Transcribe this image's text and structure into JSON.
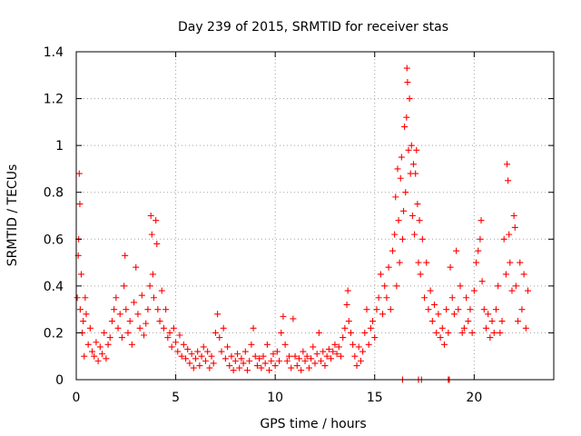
{
  "chart_data": {
    "type": "scatter",
    "title": "Day 239 of 2015, SRMTID for receiver stas",
    "xlabel": "GPS time / hours",
    "ylabel": "SRMTID / TECUs",
    "xlim": [
      0,
      24
    ],
    "ylim": [
      0,
      1.4
    ],
    "xticks": [
      0,
      5,
      10,
      15,
      20
    ],
    "xtick_labels": [
      "0",
      "5",
      "10",
      "15",
      "20"
    ],
    "yticks": [
      0,
      0.2,
      0.4,
      0.6,
      0.8,
      1.0,
      1.2,
      1.4
    ],
    "ytick_labels": [
      "0",
      "0.2",
      "0.4",
      "0.6",
      "0.8",
      "1",
      "1.2",
      "1.4"
    ],
    "grid": true,
    "marker": "+",
    "color": "#ff0000",
    "series": [
      {
        "name": "SRMTID",
        "points": [
          [
            0.05,
            0.35
          ],
          [
            0.1,
            0.53
          ],
          [
            0.12,
            0.6
          ],
          [
            0.15,
            0.88
          ],
          [
            0.18,
            0.75
          ],
          [
            0.2,
            0.3
          ],
          [
            0.25,
            0.45
          ],
          [
            0.3,
            0.2
          ],
          [
            0.35,
            0.25
          ],
          [
            0.4,
            0.1
          ],
          [
            0.45,
            0.35
          ],
          [
            0.5,
            0.28
          ],
          [
            0.6,
            0.15
          ],
          [
            0.7,
            0.22
          ],
          [
            0.8,
            0.12
          ],
          [
            0.9,
            0.1
          ],
          [
            1.0,
            0.16
          ],
          [
            1.1,
            0.08
          ],
          [
            1.2,
            0.14
          ],
          [
            1.3,
            0.11
          ],
          [
            1.4,
            0.2
          ],
          [
            1.5,
            0.09
          ],
          [
            1.6,
            0.15
          ],
          [
            1.7,
            0.18
          ],
          [
            1.8,
            0.25
          ],
          [
            1.9,
            0.3
          ],
          [
            2.0,
            0.35
          ],
          [
            2.1,
            0.22
          ],
          [
            2.2,
            0.28
          ],
          [
            2.3,
            0.18
          ],
          [
            2.4,
            0.4
          ],
          [
            2.45,
            0.53
          ],
          [
            2.5,
            0.3
          ],
          [
            2.6,
            0.2
          ],
          [
            2.7,
            0.25
          ],
          [
            2.8,
            0.15
          ],
          [
            2.9,
            0.33
          ],
          [
            3.0,
            0.48
          ],
          [
            3.1,
            0.28
          ],
          [
            3.2,
            0.22
          ],
          [
            3.3,
            0.36
          ],
          [
            3.4,
            0.19
          ],
          [
            3.5,
            0.24
          ],
          [
            3.6,
            0.3
          ],
          [
            3.7,
            0.4
          ],
          [
            3.75,
            0.7
          ],
          [
            3.8,
            0.62
          ],
          [
            3.85,
            0.45
          ],
          [
            3.9,
            0.35
          ],
          [
            4.0,
            0.68
          ],
          [
            4.05,
            0.58
          ],
          [
            4.1,
            0.3
          ],
          [
            4.2,
            0.25
          ],
          [
            4.3,
            0.38
          ],
          [
            4.4,
            0.22
          ],
          [
            4.5,
            0.3
          ],
          [
            4.6,
            0.18
          ],
          [
            4.7,
            0.2
          ],
          [
            4.8,
            0.14
          ],
          [
            4.9,
            0.22
          ],
          [
            5.0,
            0.16
          ],
          [
            5.1,
            0.12
          ],
          [
            5.2,
            0.19
          ],
          [
            5.3,
            0.1
          ],
          [
            5.4,
            0.15
          ],
          [
            5.5,
            0.09
          ],
          [
            5.6,
            0.13
          ],
          [
            5.7,
            0.07
          ],
          [
            5.8,
            0.11
          ],
          [
            5.9,
            0.05
          ],
          [
            6.0,
            0.09
          ],
          [
            6.1,
            0.12
          ],
          [
            6.2,
            0.06
          ],
          [
            6.3,
            0.1
          ],
          [
            6.4,
            0.14
          ],
          [
            6.5,
            0.08
          ],
          [
            6.6,
            0.12
          ],
          [
            6.7,
            0.05
          ],
          [
            6.8,
            0.1
          ],
          [
            6.9,
            0.07
          ],
          [
            7.0,
            0.2
          ],
          [
            7.1,
            0.28
          ],
          [
            7.2,
            0.18
          ],
          [
            7.3,
            0.12
          ],
          [
            7.4,
            0.22
          ],
          [
            7.5,
            0.09
          ],
          [
            7.6,
            0.14
          ],
          [
            7.7,
            0.06
          ],
          [
            7.8,
            0.1
          ],
          [
            7.9,
            0.04
          ],
          [
            8.0,
            0.08
          ],
          [
            8.1,
            0.11
          ],
          [
            8.2,
            0.05
          ],
          [
            8.3,
            0.09
          ],
          [
            8.4,
            0.07
          ],
          [
            8.5,
            0.12
          ],
          [
            8.6,
            0.04
          ],
          [
            8.7,
            0.08
          ],
          [
            8.8,
            0.15
          ],
          [
            8.9,
            0.22
          ],
          [
            9.0,
            0.1
          ],
          [
            9.1,
            0.06
          ],
          [
            9.2,
            0.09
          ],
          [
            9.3,
            0.05
          ],
          [
            9.4,
            0.1
          ],
          [
            9.5,
            0.07
          ],
          [
            9.6,
            0.15
          ],
          [
            9.7,
            0.04
          ],
          [
            9.8,
            0.08
          ],
          [
            9.9,
            0.11
          ],
          [
            10.0,
            0.06
          ],
          [
            10.1,
            0.12
          ],
          [
            10.2,
            0.08
          ],
          [
            10.3,
            0.2
          ],
          [
            10.4,
            0.27
          ],
          [
            10.5,
            0.15
          ],
          [
            10.6,
            0.08
          ],
          [
            10.7,
            0.1
          ],
          [
            10.8,
            0.05
          ],
          [
            10.9,
            0.26
          ],
          [
            11.0,
            0.1
          ],
          [
            11.1,
            0.06
          ],
          [
            11.2,
            0.09
          ],
          [
            11.3,
            0.04
          ],
          [
            11.4,
            0.12
          ],
          [
            11.5,
            0.08
          ],
          [
            11.6,
            0.1
          ],
          [
            11.7,
            0.05
          ],
          [
            11.8,
            0.09
          ],
          [
            11.9,
            0.14
          ],
          [
            12.0,
            0.07
          ],
          [
            12.1,
            0.11
          ],
          [
            12.2,
            0.2
          ],
          [
            12.3,
            0.08
          ],
          [
            12.4,
            0.12
          ],
          [
            12.5,
            0.06
          ],
          [
            12.6,
            0.1
          ],
          [
            12.7,
            0.13
          ],
          [
            12.8,
            0.09
          ],
          [
            12.9,
            0.12
          ],
          [
            13.0,
            0.15
          ],
          [
            13.1,
            0.11
          ],
          [
            13.2,
            0.14
          ],
          [
            13.3,
            0.1
          ],
          [
            13.4,
            0.18
          ],
          [
            13.5,
            0.22
          ],
          [
            13.6,
            0.32
          ],
          [
            13.65,
            0.38
          ],
          [
            13.7,
            0.25
          ],
          [
            13.8,
            0.2
          ],
          [
            13.9,
            0.15
          ],
          [
            14.0,
            0.1
          ],
          [
            14.1,
            0.06
          ],
          [
            14.2,
            0.14
          ],
          [
            14.3,
            0.08
          ],
          [
            14.4,
            0.12
          ],
          [
            14.5,
            0.2
          ],
          [
            14.6,
            0.3
          ],
          [
            14.7,
            0.15
          ],
          [
            14.8,
            0.22
          ],
          [
            14.9,
            0.25
          ],
          [
            15.0,
            0.18
          ],
          [
            15.1,
            0.3
          ],
          [
            15.2,
            0.35
          ],
          [
            15.3,
            0.45
          ],
          [
            15.4,
            0.28
          ],
          [
            15.5,
            0.4
          ],
          [
            15.6,
            0.35
          ],
          [
            15.7,
            0.48
          ],
          [
            15.8,
            0.3
          ],
          [
            15.9,
            0.55
          ],
          [
            16.0,
            0.62
          ],
          [
            16.05,
            0.78
          ],
          [
            16.1,
            0.4
          ],
          [
            16.15,
            0.9
          ],
          [
            16.2,
            0.68
          ],
          [
            16.25,
            0.5
          ],
          [
            16.3,
            0.86
          ],
          [
            16.35,
            0.95
          ],
          [
            16.4,
            0.6
          ],
          [
            16.45,
            0.72
          ],
          [
            16.5,
            1.08
          ],
          [
            16.55,
            0.8
          ],
          [
            16.6,
            1.12
          ],
          [
            16.62,
            1.33
          ],
          [
            16.65,
            1.27
          ],
          [
            16.7,
            0.98
          ],
          [
            16.75,
            1.2
          ],
          [
            16.8,
            0.88
          ],
          [
            16.85,
            1.0
          ],
          [
            16.9,
            0.7
          ],
          [
            16.95,
            0.92
          ],
          [
            17.0,
            0.62
          ],
          [
            17.05,
            0.88
          ],
          [
            17.1,
            0.98
          ],
          [
            17.15,
            0.75
          ],
          [
            17.2,
            0.5
          ],
          [
            17.25,
            0.68
          ],
          [
            17.3,
            0.45
          ],
          [
            17.4,
            0.6
          ],
          [
            17.5,
            0.35
          ],
          [
            17.6,
            0.5
          ],
          [
            17.7,
            0.3
          ],
          [
            17.8,
            0.38
          ],
          [
            17.9,
            0.25
          ],
          [
            18.0,
            0.32
          ],
          [
            18.1,
            0.2
          ],
          [
            18.2,
            0.28
          ],
          [
            18.3,
            0.18
          ],
          [
            18.4,
            0.22
          ],
          [
            18.5,
            0.15
          ],
          [
            18.6,
            0.3
          ],
          [
            18.7,
            0.2
          ],
          [
            18.8,
            0.48
          ],
          [
            18.9,
            0.35
          ],
          [
            19.0,
            0.28
          ],
          [
            19.1,
            0.55
          ],
          [
            19.2,
            0.3
          ],
          [
            19.3,
            0.4
          ],
          [
            19.4,
            0.2
          ],
          [
            19.5,
            0.22
          ],
          [
            19.6,
            0.35
          ],
          [
            19.7,
            0.25
          ],
          [
            19.8,
            0.3
          ],
          [
            19.9,
            0.2
          ],
          [
            20.0,
            0.38
          ],
          [
            20.1,
            0.5
          ],
          [
            20.2,
            0.55
          ],
          [
            20.3,
            0.6
          ],
          [
            20.35,
            0.68
          ],
          [
            20.4,
            0.42
          ],
          [
            20.5,
            0.3
          ],
          [
            20.6,
            0.22
          ],
          [
            20.7,
            0.28
          ],
          [
            20.8,
            0.18
          ],
          [
            20.9,
            0.25
          ],
          [
            21.0,
            0.2
          ],
          [
            21.1,
            0.3
          ],
          [
            21.2,
            0.4
          ],
          [
            21.3,
            0.2
          ],
          [
            21.4,
            0.25
          ],
          [
            21.5,
            0.6
          ],
          [
            21.6,
            0.45
          ],
          [
            21.65,
            0.92
          ],
          [
            21.7,
            0.85
          ],
          [
            21.75,
            0.62
          ],
          [
            21.8,
            0.5
          ],
          [
            21.9,
            0.38
          ],
          [
            22.0,
            0.7
          ],
          [
            22.05,
            0.65
          ],
          [
            22.1,
            0.4
          ],
          [
            22.2,
            0.25
          ],
          [
            22.3,
            0.5
          ],
          [
            22.4,
            0.3
          ],
          [
            22.5,
            0.45
          ],
          [
            22.6,
            0.22
          ],
          [
            22.7,
            0.38
          ],
          [
            16.4,
            0.0
          ],
          [
            17.2,
            0.0
          ],
          [
            17.35,
            0.0
          ],
          [
            18.7,
            0.0
          ],
          [
            18.75,
            0.0
          ]
        ]
      }
    ]
  }
}
